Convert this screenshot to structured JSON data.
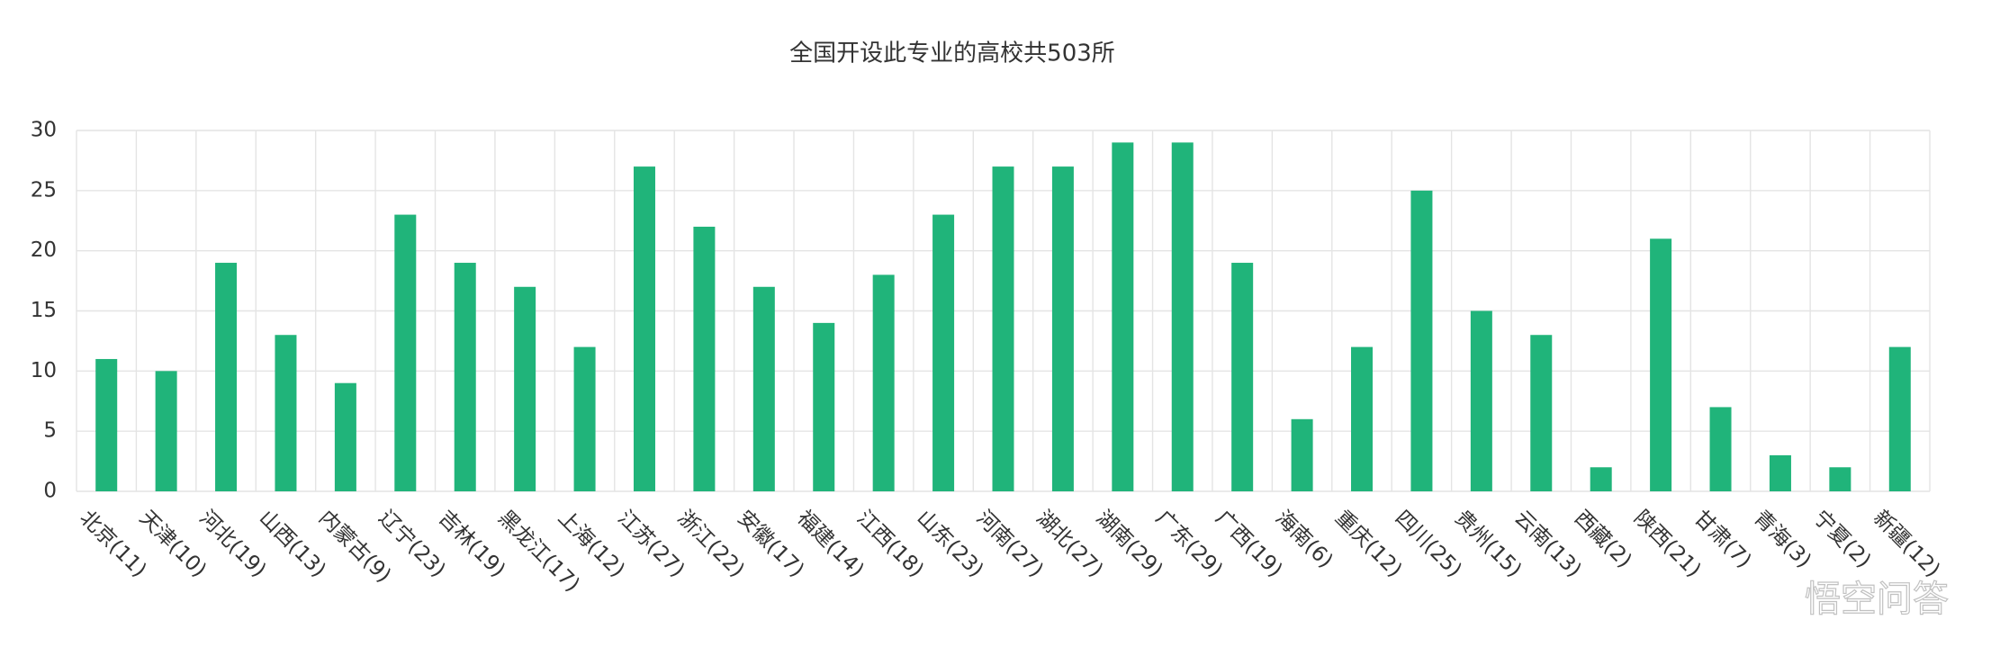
{
  "chart_data": {
    "type": "bar",
    "title": "全国开设此专业的高校共503所",
    "categories": [
      "北京(11)",
      "天津(10)",
      "河北(19)",
      "山西(13)",
      "内蒙古(9)",
      "辽宁(23)",
      "吉林(19)",
      "黑龙江(17)",
      "上海(12)",
      "江苏(27)",
      "浙江(22)",
      "安徽(17)",
      "福建(14)",
      "江西(18)",
      "山东(23)",
      "河南(27)",
      "湖北(27)",
      "湖南(29)",
      "广东(29)",
      "广西(19)",
      "海南(6)",
      "重庆(12)",
      "四川(25)",
      "贵州(15)",
      "云南(13)",
      "西藏(2)",
      "陕西(21)",
      "甘肃(7)",
      "青海(3)",
      "宁夏(2)",
      "新疆(12)"
    ],
    "values": [
      11,
      10,
      19,
      13,
      9,
      23,
      19,
      17,
      12,
      27,
      22,
      17,
      14,
      18,
      23,
      27,
      27,
      29,
      29,
      19,
      6,
      12,
      25,
      15,
      13,
      2,
      21,
      7,
      3,
      2,
      12
    ],
    "color": "#20b47a",
    "ylim": [
      0,
      30
    ],
    "yticks": [
      0,
      5,
      10,
      15,
      20,
      25,
      30
    ],
    "grid": true
  },
  "watermark": "悟空问答"
}
